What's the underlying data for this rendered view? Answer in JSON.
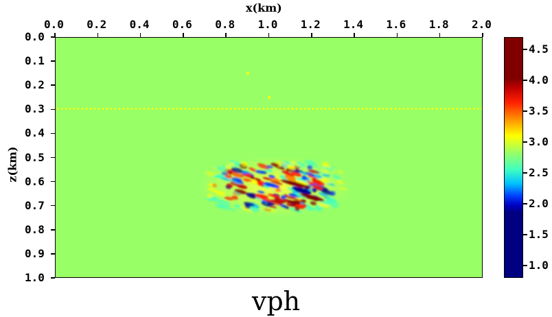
{
  "chart_data": {
    "type": "heatmap",
    "title": "vph",
    "xlabel": "x(km)",
    "ylabel": "z(km)",
    "xlim": [
      0.0,
      2.0
    ],
    "ylim": [
      1.0,
      0.0
    ],
    "x_ticks": [
      "0.0",
      "0.2",
      "0.4",
      "0.6",
      "0.8",
      "1.0",
      "1.2",
      "1.4",
      "1.6",
      "1.8",
      "2.0"
    ],
    "y_ticks": [
      "0.0",
      "0.1",
      "0.2",
      "0.3",
      "0.4",
      "0.5",
      "0.6",
      "0.7",
      "0.8",
      "0.9",
      "1.0"
    ],
    "x_axis_position": "top",
    "colorbar": {
      "colormap": "jet",
      "range": [
        0.8,
        4.7
      ],
      "ticks": [
        "4.5",
        "4.0",
        "3.5",
        "3.0",
        "2.5",
        "2.0",
        "1.5",
        "1.0"
      ],
      "position": "right"
    },
    "background_value": 3.0,
    "background_color": "#99ff66",
    "features": [
      {
        "type": "anomaly_patch",
        "x_range": [
          0.65,
          1.38
        ],
        "z_range": [
          0.5,
          0.75
        ],
        "values_range": [
          0.8,
          4.7
        ],
        "description": "heterogeneous velocity perturbation, strongest near x=1.1 km, z=0.6 km"
      },
      {
        "type": "dotted_line",
        "z": 0.3,
        "x_range": [
          0.0,
          2.0
        ],
        "color": "#ffff00"
      },
      {
        "type": "point",
        "x": 0.9,
        "z": 0.15,
        "color": "#ffff00"
      },
      {
        "type": "point",
        "x": 1.0,
        "z": 0.25,
        "color": "#ffff00"
      }
    ],
    "grid": false
  }
}
